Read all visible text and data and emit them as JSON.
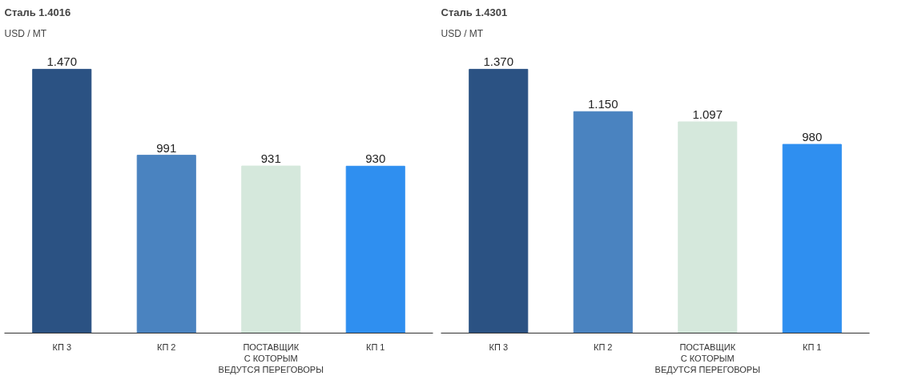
{
  "chart_data": [
    {
      "type": "bar",
      "title": "Сталь 1.4016",
      "subtitle": "USD / MT",
      "categories": [
        "КП 3",
        "КП 2",
        "ПОСТАВЩИК\nС КОТОРЫМ\nВЕДУТСЯ ПЕРЕГОВОРЫ",
        "КП 1"
      ],
      "values": [
        1470,
        991,
        931,
        930
      ],
      "value_labels": [
        "1.470",
        "991",
        "931",
        "930"
      ],
      "colors": [
        "#2b5283",
        "#4a83c0",
        "#d5e8dc",
        "#2f8ff0"
      ],
      "tick_labels": "x",
      "grid": false
    },
    {
      "type": "bar",
      "title": "Сталь 1.4301",
      "subtitle": "USD / MT",
      "categories": [
        "КП 3",
        "КП 2",
        "ПОСТАВЩИК\nС КОТОРЫМ\nВЕДУТСЯ ПЕРЕГОВОРЫ",
        "КП 1"
      ],
      "values": [
        1370,
        1150,
        1097,
        980
      ],
      "value_labels": [
        "1.370",
        "1.150",
        "1.097",
        "980"
      ],
      "colors": [
        "#2b5283",
        "#4a83c0",
        "#d5e8dc",
        "#2f8ff0"
      ],
      "tick_labels": "x",
      "grid": false
    }
  ]
}
